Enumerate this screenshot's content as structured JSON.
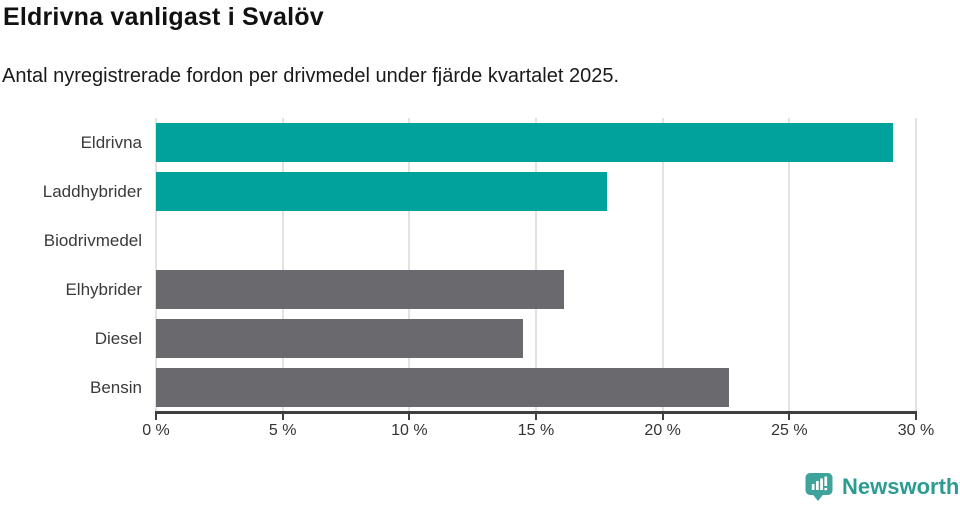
{
  "header": {
    "title": "Eldrivna vanligast i Svalöv",
    "subtitle": "Antal nyregistrerade fordon per drivmedel under fjärde kvartalet 2025."
  },
  "chart_data": {
    "type": "bar",
    "orientation": "horizontal",
    "title": "Eldrivna vanligast i Svalöv",
    "subtitle": "Antal nyregistrerade fordon per drivmedel under fjärde kvartalet 2025.",
    "categories": [
      "Eldrivna",
      "Laddhybrider",
      "Biodrivmedel",
      "Elhybrider",
      "Diesel",
      "Bensin"
    ],
    "values": [
      29.1,
      17.8,
      0,
      16.1,
      14.5,
      22.6
    ],
    "bar_colors": [
      "#00a29b",
      "#00a29b",
      "#00a29b",
      "#6a6a6e",
      "#6a6a6e",
      "#6a6a6e"
    ],
    "xlabel": "",
    "ylabel": "",
    "xlim": [
      0,
      30
    ],
    "x_ticks": [
      0,
      5,
      10,
      15,
      20,
      25,
      30
    ],
    "x_tick_suffix": " %",
    "grid": true,
    "legend": false
  },
  "style": {
    "gridline_color": "#e2e2e2",
    "axis_color": "#3f3f3f",
    "highlight_color": "#00a29b",
    "neutral_color": "#6a6a6e"
  },
  "branding": {
    "logo_text": "Newsworthy",
    "logo_text_color": "#2c9b93",
    "logo_icon_color": "#3ea39a",
    "logo_icon": "bar-chart-speech-bubble-icon"
  }
}
